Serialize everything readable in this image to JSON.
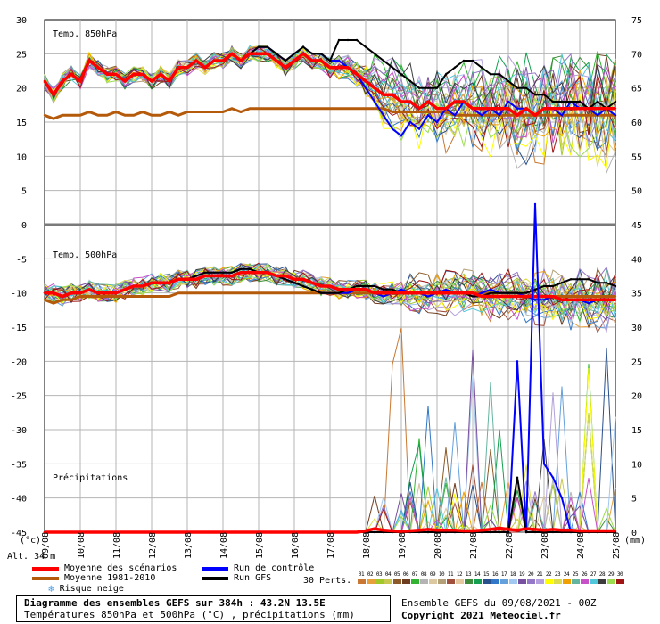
{
  "chart_data": [
    {
      "type": "line",
      "title": "Temp. 850hPa",
      "unit": "(°C)",
      "x_tick_labels": [
        "09/08",
        "10/08",
        "11/08",
        "12/08",
        "13/08",
        "14/08",
        "15/08",
        "16/08",
        "17/08",
        "18/08",
        "19/08",
        "20/08",
        "21/08",
        "22/08",
        "23/08",
        "24/08",
        "25/08"
      ],
      "ylim": [
        -45,
        30
      ],
      "series": [
        {
          "name": "Moyenne des scénarios",
          "color": "#ff0000",
          "values": [
            21,
            19,
            21,
            22,
            21,
            24,
            23,
            22,
            22,
            21,
            22,
            22,
            21,
            22,
            21,
            23,
            23,
            24,
            23,
            24,
            24,
            25,
            24,
            25,
            25,
            25,
            24,
            23,
            24,
            25,
            24,
            24,
            23,
            23,
            23,
            22,
            21,
            20,
            19,
            19,
            18,
            18,
            17,
            18,
            17,
            17,
            18,
            18,
            17,
            17,
            17,
            17,
            17,
            16,
            17,
            16,
            17,
            17,
            17,
            17,
            17,
            17,
            17,
            17,
            17
          ]
        },
        {
          "name": "Moyenne 1981-2010",
          "color": "#b45a0a",
          "values": [
            16,
            15.5,
            16,
            16,
            16,
            16.5,
            16,
            16,
            16.5,
            16,
            16,
            16.5,
            16,
            16,
            16.5,
            16,
            16.5,
            16.5,
            16.5,
            16.5,
            16.5,
            17,
            16.5,
            17,
            17,
            17,
            17,
            17,
            17,
            17,
            17,
            17,
            17,
            17,
            17,
            17,
            17,
            17,
            17,
            16.5,
            16.5,
            16.5,
            16.5,
            16.5,
            16.5,
            16.5,
            16,
            16,
            16,
            16,
            16,
            16,
            16,
            16,
            16,
            16,
            16,
            16,
            16,
            16,
            16,
            16,
            16,
            16,
            16
          ]
        },
        {
          "name": "Run de contrôle",
          "color": "#0000ff",
          "values": [
            21,
            19,
            21,
            22,
            21,
            24,
            23,
            22,
            22,
            21,
            22,
            22,
            21,
            22,
            21,
            23,
            23,
            24,
            23,
            24,
            24,
            25,
            24,
            25,
            26,
            26,
            25,
            24,
            25,
            26,
            25,
            25,
            24,
            24,
            23,
            22,
            20,
            18,
            16,
            14,
            13,
            15,
            14,
            16,
            15,
            17,
            16,
            18,
            17,
            16,
            17,
            16,
            18,
            17,
            17,
            16,
            17,
            17,
            16,
            18,
            17,
            17,
            16,
            17,
            16
          ]
        },
        {
          "name": "Run GFS",
          "color": "#000000",
          "values": [
            21,
            19,
            21,
            22,
            21,
            24,
            23,
            22,
            22,
            21,
            22,
            22,
            21,
            22,
            21,
            23,
            23,
            24,
            23,
            24,
            24,
            25,
            24,
            25,
            26,
            26,
            25,
            24,
            25,
            26,
            25,
            25,
            24,
            27,
            27,
            27,
            26,
            25,
            24,
            23,
            22,
            21,
            20,
            20,
            20,
            22,
            23,
            24,
            24,
            23,
            22,
            22,
            21,
            20,
            20,
            19,
            19,
            18,
            18,
            18,
            18,
            17,
            18,
            17,
            18
          ]
        }
      ]
    },
    {
      "type": "line",
      "title": "Temp. 500hPa",
      "unit": "(°C)",
      "ylim": [
        -45,
        30
      ],
      "series": [
        {
          "name": "Moyenne des scénarios",
          "color": "#ff0000",
          "values": [
            -10,
            -10,
            -10.5,
            -10,
            -10,
            -9.5,
            -10,
            -10,
            -10,
            -9.5,
            -9,
            -9,
            -8.5,
            -8.5,
            -8.5,
            -8,
            -8,
            -8,
            -7.5,
            -7.5,
            -7.5,
            -7.5,
            -7,
            -7,
            -7,
            -7,
            -7.5,
            -7.5,
            -8,
            -8,
            -8.5,
            -9,
            -9,
            -9.5,
            -9.5,
            -9.5,
            -9.5,
            -10,
            -10,
            -10,
            -10,
            -10,
            -10,
            -10,
            -10,
            -10,
            -10,
            -10,
            -10,
            -10.5,
            -10.5,
            -10.5,
            -10.5,
            -10.5,
            -10.5,
            -10.5,
            -10.5,
            -10.5,
            -11,
            -11,
            -11,
            -11,
            -11,
            -11,
            -11
          ]
        },
        {
          "name": "Moyenne 1981-2010",
          "color": "#b45a0a",
          "values": [
            -11,
            -11.5,
            -11,
            -11,
            -10.5,
            -10.5,
            -10.5,
            -10.5,
            -10.5,
            -10.5,
            -10.5,
            -10.5,
            -10.5,
            -10.5,
            -10.5,
            -10,
            -10,
            -10,
            -10,
            -10,
            -10,
            -10,
            -10,
            -10,
            -10,
            -10,
            -10,
            -10,
            -10,
            -10,
            -10,
            -10,
            -10,
            -10,
            -10,
            -10,
            -10,
            -10,
            -10,
            -10,
            -10,
            -10,
            -10,
            -10,
            -10,
            -10,
            -10,
            -10,
            -10,
            -10,
            -10,
            -10,
            -10,
            -10,
            -10.5,
            -10.5,
            -10.5,
            -10.5,
            -10.5,
            -10.5,
            -10.5,
            -10.5,
            -10.5,
            -10.5,
            -10.5
          ]
        },
        {
          "name": "Run de contrôle",
          "color": "#0000ff",
          "values": [
            -10,
            -10,
            -10.5,
            -10,
            -10,
            -9.5,
            -10,
            -10,
            -10,
            -9.5,
            -9,
            -9,
            -8.5,
            -8.5,
            -8.5,
            -8,
            -8,
            -7.5,
            -7,
            -7,
            -7,
            -7,
            -6.5,
            -6.5,
            -7,
            -7,
            -7.5,
            -8,
            -8.5,
            -9,
            -9.5,
            -10,
            -10,
            -10,
            -10,
            -9.5,
            -9.5,
            -10,
            -10.5,
            -10,
            -9.5,
            -10,
            -10,
            -10.5,
            -10,
            -9.5,
            -10,
            -10,
            -10.5,
            -10,
            -9.5,
            -10,
            -10,
            -10,
            -10.5,
            -11,
            -11,
            -10.5,
            -11,
            -11,
            -11,
            -11.5,
            -11,
            -11,
            -11
          ]
        },
        {
          "name": "Run GFS",
          "color": "#000000",
          "values": [
            -10,
            -10,
            -10.5,
            -10,
            -10,
            -9.5,
            -10,
            -10,
            -10,
            -9.5,
            -9,
            -9,
            -8.5,
            -8.5,
            -8.5,
            -8,
            -8,
            -7.5,
            -7,
            -7,
            -7,
            -7,
            -6.5,
            -6.5,
            -7,
            -7,
            -7.5,
            -8,
            -8.5,
            -9,
            -9.5,
            -10,
            -10,
            -10,
            -9.5,
            -9,
            -9,
            -9,
            -9.5,
            -9.5,
            -10,
            -10,
            -10,
            -10,
            -10,
            -10,
            -10,
            -10,
            -10.5,
            -10.5,
            -10,
            -10,
            -10,
            -10,
            -10,
            -9.5,
            -9,
            -9,
            -8.5,
            -8,
            -8,
            -8,
            -8.5,
            -8.5,
            -9
          ]
        }
      ]
    },
    {
      "type": "line",
      "title": "Précipitations",
      "unit": "(mm)",
      "ylim": [
        0,
        75
      ],
      "series": [
        {
          "name": "Moyenne des scénarios",
          "color": "#ff0000",
          "values": [
            0,
            0,
            0,
            0,
            0,
            0,
            0,
            0,
            0,
            0,
            0,
            0,
            0,
            0,
            0,
            0,
            0,
            0,
            0,
            0,
            0,
            0,
            0,
            0,
            0,
            0,
            0,
            0,
            0,
            0,
            0,
            0,
            0,
            0,
            0,
            0,
            0.2,
            0.5,
            0.3,
            0.2,
            0.1,
            0.2,
            0.3,
            0.4,
            0.3,
            0.3,
            0.3,
            0.2,
            0.2,
            0.3,
            0.4,
            0.6,
            0.4,
            0.3,
            0.5,
            0.4,
            0.3,
            0.4,
            0.3,
            0.3,
            0.2,
            0.2,
            0.2,
            0.2,
            0.2
          ]
        },
        {
          "name": "Run de contrôle",
          "color": "#0000ff",
          "values": [
            0,
            0,
            0,
            0,
            0,
            0,
            0,
            0,
            0,
            0,
            0,
            0,
            0,
            0,
            0,
            0,
            0,
            0,
            0,
            0,
            0,
            0,
            0,
            0,
            0,
            0,
            0,
            0,
            0,
            0,
            0,
            0,
            0,
            0,
            0,
            0,
            0,
            0,
            0,
            0,
            0,
            0,
            0,
            0,
            0,
            0,
            0,
            0,
            0,
            0,
            0,
            0,
            0,
            25,
            0,
            48,
            10,
            8,
            5,
            0,
            0,
            0,
            0,
            0,
            0
          ]
        },
        {
          "name": "Run GFS",
          "color": "#000000",
          "values": [
            0,
            0,
            0,
            0,
            0,
            0,
            0,
            0,
            0,
            0,
            0,
            0,
            0,
            0,
            0,
            0,
            0,
            0,
            0,
            0,
            0,
            0,
            0,
            0,
            0,
            0,
            0,
            0,
            0,
            0,
            0,
            0,
            0,
            0,
            0,
            0,
            0,
            0,
            0,
            0,
            0,
            0,
            0,
            0,
            0,
            0,
            0,
            0,
            0,
            0,
            0,
            0,
            0,
            8,
            0,
            0,
            0,
            0,
            0,
            0,
            0,
            0,
            0,
            0,
            0
          ]
        }
      ]
    }
  ],
  "axes": {
    "left_ticks": [
      "30",
      "25",
      "20",
      "15",
      "10",
      "5",
      "0",
      "-5",
      "-10",
      "-15",
      "-20",
      "-25",
      "-30",
      "-35",
      "-40",
      "-45"
    ],
    "right_ticks": [
      "75",
      "70",
      "65",
      "60",
      "55",
      "50",
      "45",
      "40",
      "35",
      "30",
      "25",
      "20",
      "15",
      "10",
      "5",
      "0"
    ],
    "left_unit": "(°c)",
    "right_unit": "(mm)",
    "altitude": "Alt. 34 m"
  },
  "panel_labels": {
    "t850": "Temp. 850hPa",
    "t500": "Temp. 500hPa",
    "precip": "Précipitations"
  },
  "legend": {
    "mean": "Moyenne des scénarios",
    "climato": "Moyenne 1981-2010",
    "snow": "Risque neige",
    "control": "Run de contrôle",
    "gfs": "Run GFS",
    "perts_label": "30 Perts.",
    "pert_numbers": [
      "01",
      "02",
      "03",
      "04",
      "05",
      "06",
      "07",
      "08",
      "09",
      "10",
      "11",
      "12",
      "13",
      "14",
      "15",
      "16",
      "17",
      "18",
      "19",
      "20",
      "21",
      "22",
      "23",
      "24",
      "25",
      "26",
      "27",
      "28",
      "29",
      "30"
    ],
    "pert_colors": [
      "#c87832",
      "#e8a03c",
      "#a0c828",
      "#c8c850",
      "#8c5a28",
      "#6e3c1e",
      "#32b432",
      "#b4b4b4",
      "#dcc8a0",
      "#b4a078",
      "#a0503c",
      "#e6c8a0",
      "#3c8c3c",
      "#14a050",
      "#28508c",
      "#3278c8",
      "#64a0dc",
      "#a0c8f0",
      "#7850a0",
      "#9678c8",
      "#b4a0dc",
      "#ffff00",
      "#dcdc50",
      "#f0a000",
      "#64b4a0",
      "#c850c8",
      "#50c8dc",
      "#3c3c3c",
      "#9bdc50",
      "#a01414"
    ],
    "colors": {
      "mean": "#ff0000",
      "climato": "#b45a0a",
      "control": "#0000ff",
      "gfs": "#000000"
    }
  },
  "footer": {
    "title_line1": "Diagramme des ensembles GEFS sur 384h : 43.2N 13.5E",
    "title_line2": "Températures 850hPa et 500hPa (°C) , précipitations (mm)",
    "run_info": "Ensemble GEFS du 09/08/2021 - 00Z",
    "copyright": "Copyright 2021 Meteociel.fr"
  }
}
